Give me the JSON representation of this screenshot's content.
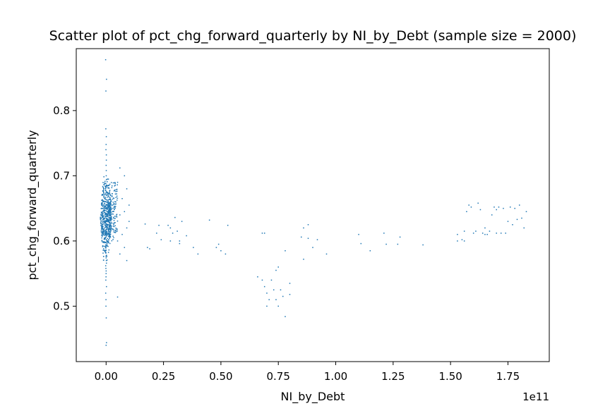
{
  "chart_data": {
    "type": "scatter",
    "title": "Scatter plot of pct_chg_forward_quarterly by NI_by_Debt (sample size = 2000)",
    "xlabel": "NI_by_Debt",
    "ylabel": "pct_chg_forward_quarterly",
    "x_offset_label": "1e11",
    "x_scale": 100000000000.0,
    "xlim": [
      -0.13,
      1.93
    ],
    "ylim": [
      0.415,
      0.895
    ],
    "x_ticks": [
      0.0,
      0.25,
      0.5,
      0.75,
      1.0,
      1.25,
      1.5,
      1.75
    ],
    "x_tick_labels": [
      "0.00",
      "0.25",
      "0.50",
      "0.75",
      "1.00",
      "1.25",
      "1.50",
      "1.75"
    ],
    "y_ticks": [
      0.5,
      0.6,
      0.7,
      0.8
    ],
    "y_tick_labels": [
      "0.5",
      "0.6",
      "0.7",
      "0.8"
    ],
    "grid": false,
    "marker_color": "#1f77b4",
    "cluster": {
      "x_center": 0.0,
      "y_points": [
        0.878,
        0.848,
        0.83,
        0.772,
        0.76,
        0.748,
        0.74,
        0.732,
        0.724,
        0.716,
        0.708,
        0.7,
        0.694,
        0.688,
        0.682,
        0.676,
        0.67,
        0.664,
        0.66,
        0.655,
        0.65,
        0.646,
        0.642,
        0.638,
        0.634,
        0.63,
        0.626,
        0.622,
        0.618,
        0.614,
        0.61,
        0.606,
        0.602,
        0.598,
        0.594,
        0.59,
        0.586,
        0.582,
        0.578,
        0.574,
        0.57,
        0.566,
        0.562,
        0.558,
        0.554,
        0.55,
        0.545,
        0.54,
        0.53,
        0.52,
        0.51,
        0.5,
        0.482,
        0.444,
        0.44
      ]
    },
    "points": [
      [
        0.06,
        0.712
      ],
      [
        0.08,
        0.7
      ],
      [
        0.05,
        0.69
      ],
      [
        0.09,
        0.68
      ],
      [
        0.07,
        0.665
      ],
      [
        0.1,
        0.655
      ],
      [
        0.08,
        0.645
      ],
      [
        0.06,
        0.64
      ],
      [
        0.1,
        0.63
      ],
      [
        0.09,
        0.62
      ],
      [
        0.07,
        0.61
      ],
      [
        0.05,
        0.6
      ],
      [
        0.08,
        0.59
      ],
      [
        0.06,
        0.58
      ],
      [
        0.09,
        0.57
      ],
      [
        0.05,
        0.514
      ],
      [
        0.17,
        0.626
      ],
      [
        0.18,
        0.59
      ],
      [
        0.19,
        0.588
      ],
      [
        0.22,
        0.612
      ],
      [
        0.23,
        0.624
      ],
      [
        0.24,
        0.602
      ],
      [
        0.27,
        0.624
      ],
      [
        0.28,
        0.62
      ],
      [
        0.29,
        0.612
      ],
      [
        0.28,
        0.6
      ],
      [
        0.3,
        0.636
      ],
      [
        0.31,
        0.615
      ],
      [
        0.32,
        0.6
      ],
      [
        0.33,
        0.63
      ],
      [
        0.32,
        0.596
      ],
      [
        0.35,
        0.608
      ],
      [
        0.38,
        0.59
      ],
      [
        0.4,
        0.58
      ],
      [
        0.45,
        0.632
      ],
      [
        0.48,
        0.59
      ],
      [
        0.49,
        0.595
      ],
      [
        0.5,
        0.585
      ],
      [
        0.52,
        0.58
      ],
      [
        0.53,
        0.624
      ],
      [
        0.68,
        0.612
      ],
      [
        0.69,
        0.612
      ],
      [
        0.66,
        0.545
      ],
      [
        0.68,
        0.54
      ],
      [
        0.69,
        0.53
      ],
      [
        0.7,
        0.52
      ],
      [
        0.71,
        0.51
      ],
      [
        0.7,
        0.5
      ],
      [
        0.72,
        0.54
      ],
      [
        0.73,
        0.525
      ],
      [
        0.74,
        0.555
      ],
      [
        0.75,
        0.56
      ],
      [
        0.74,
        0.51
      ],
      [
        0.75,
        0.5
      ],
      [
        0.76,
        0.525
      ],
      [
        0.77,
        0.515
      ],
      [
        0.78,
        0.585
      ],
      [
        0.78,
        0.484
      ],
      [
        0.8,
        0.535
      ],
      [
        0.8,
        0.518
      ],
      [
        0.85,
        0.606
      ],
      [
        0.86,
        0.62
      ],
      [
        0.86,
        0.572
      ],
      [
        0.88,
        0.604
      ],
      [
        0.88,
        0.625
      ],
      [
        0.9,
        0.59
      ],
      [
        0.92,
        0.602
      ],
      [
        0.96,
        0.58
      ],
      [
        1.1,
        0.61
      ],
      [
        1.11,
        0.596
      ],
      [
        1.15,
        0.585
      ],
      [
        1.21,
        0.612
      ],
      [
        1.22,
        0.595
      ],
      [
        1.27,
        0.595
      ],
      [
        1.28,
        0.606
      ],
      [
        1.38,
        0.594
      ],
      [
        1.53,
        0.61
      ],
      [
        1.53,
        0.6
      ],
      [
        1.55,
        0.602
      ],
      [
        1.56,
        0.615
      ],
      [
        1.56,
        0.6
      ],
      [
        1.57,
        0.645
      ],
      [
        1.58,
        0.655
      ],
      [
        1.59,
        0.652
      ],
      [
        1.6,
        0.612
      ],
      [
        1.61,
        0.615
      ],
      [
        1.62,
        0.658
      ],
      [
        1.63,
        0.648
      ],
      [
        1.64,
        0.612
      ],
      [
        1.65,
        0.62
      ],
      [
        1.65,
        0.61
      ],
      [
        1.66,
        0.61
      ],
      [
        1.67,
        0.615
      ],
      [
        1.68,
        0.64
      ],
      [
        1.69,
        0.652
      ],
      [
        1.7,
        0.648
      ],
      [
        1.7,
        0.612
      ],
      [
        1.71,
        0.652
      ],
      [
        1.72,
        0.612
      ],
      [
        1.73,
        0.65
      ],
      [
        1.74,
        0.612
      ],
      [
        1.75,
        0.63
      ],
      [
        1.76,
        0.652
      ],
      [
        1.77,
        0.625
      ],
      [
        1.78,
        0.65
      ],
      [
        1.79,
        0.633
      ],
      [
        1.8,
        0.655
      ],
      [
        1.81,
        0.635
      ],
      [
        1.82,
        0.62
      ],
      [
        1.83,
        0.645
      ]
    ]
  }
}
